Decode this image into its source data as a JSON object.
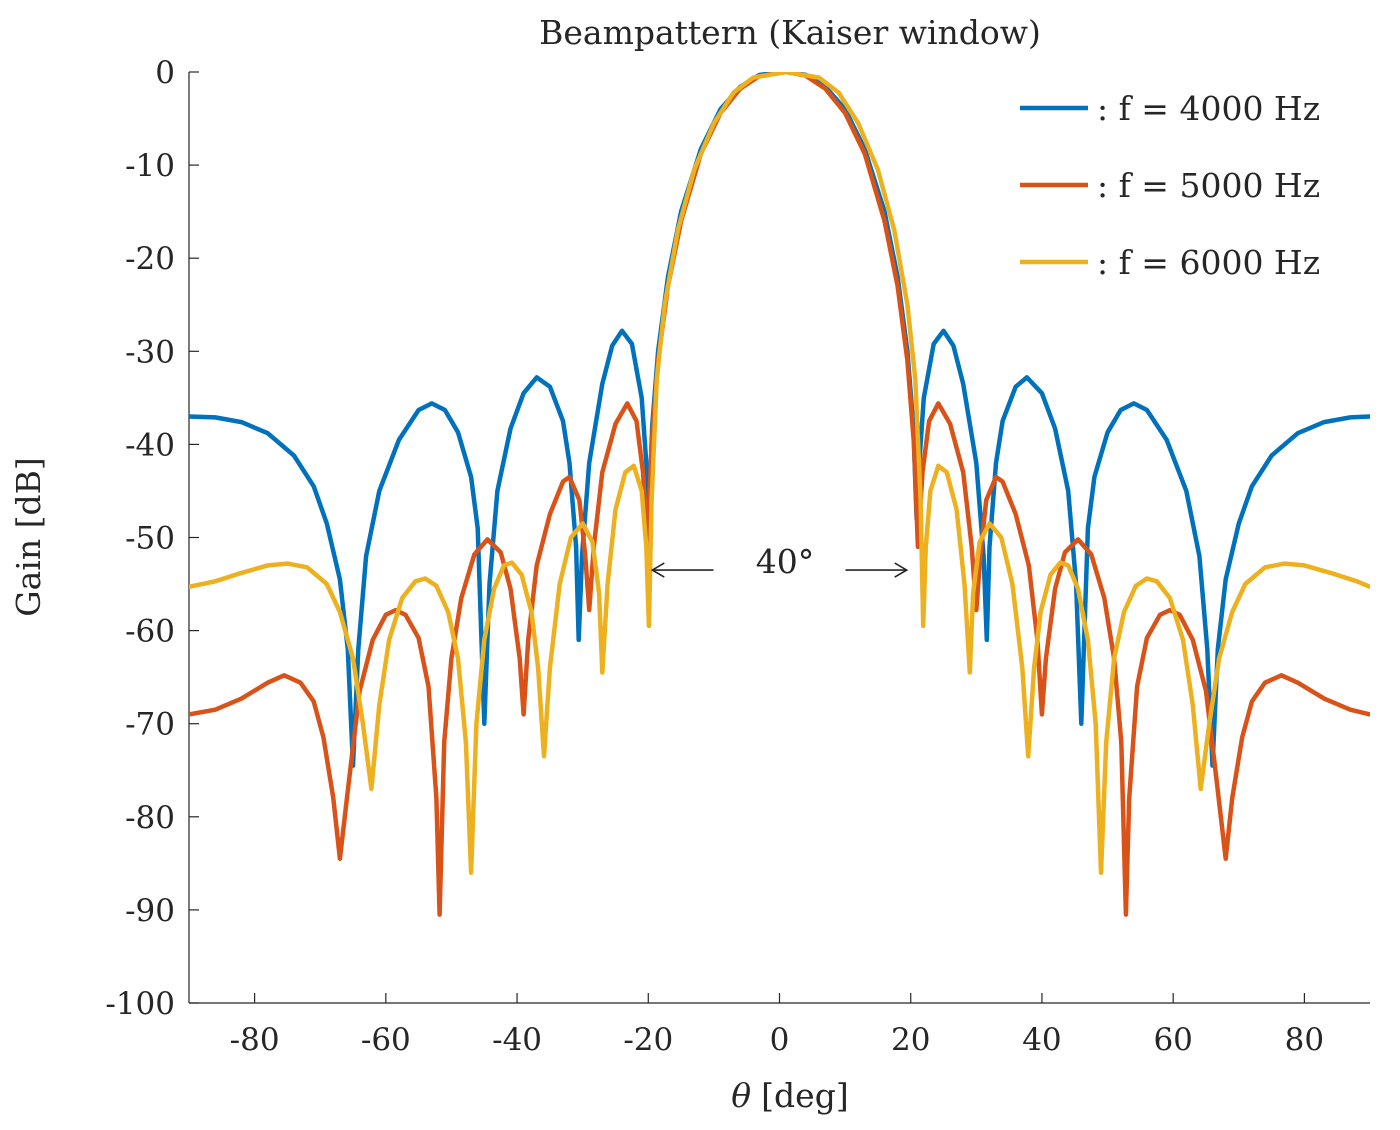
{
  "chart_data": {
    "type": "line",
    "title": "Beampattern (Kaiser window)",
    "xlabel_symbol": "θ",
    "xlabel": "[deg]",
    "ylabel": "Gain [dB]",
    "xlim": [
      -90,
      90
    ],
    "ylim": [
      -100,
      0
    ],
    "xticks": [
      -80,
      -60,
      -40,
      -20,
      0,
      20,
      40,
      60,
      80
    ],
    "xtick_labels": [
      "-80",
      "-60",
      "-40",
      "-20",
      "0",
      "20",
      "40",
      "60",
      "80"
    ],
    "yticks": [
      0,
      -10,
      -20,
      -30,
      -40,
      -50,
      -60,
      -70,
      -80,
      -90,
      -100
    ],
    "ytick_labels": [
      "0",
      "-10",
      "-20",
      "-30",
      "-40",
      "-50",
      "-60",
      "-70",
      "-80",
      "-90",
      "-100"
    ],
    "grid": false,
    "legend_position": "top-right",
    "annotation": {
      "text": "40°",
      "arrow_from": -20,
      "arrow_to": 20,
      "y": -53.5
    },
    "series": [
      {
        "name": ": f = 4000 Hz",
        "color": "#0072BD",
        "points": [
          [
            -90,
            -37
          ],
          [
            -86,
            -37.1
          ],
          [
            -82,
            -37.6
          ],
          [
            -78,
            -38.8
          ],
          [
            -74,
            -41.2
          ],
          [
            -71,
            -44.5
          ],
          [
            -69,
            -48.5
          ],
          [
            -67,
            -54.5
          ],
          [
            -65.8,
            -62
          ],
          [
            -65,
            -74.5
          ],
          [
            -64.2,
            -62
          ],
          [
            -63,
            -52
          ],
          [
            -61,
            -45
          ],
          [
            -58,
            -39.5
          ],
          [
            -55,
            -36.3
          ],
          [
            -53,
            -35.6
          ],
          [
            -51,
            -36.3
          ],
          [
            -49,
            -38.7
          ],
          [
            -47,
            -43.5
          ],
          [
            -46,
            -49
          ],
          [
            -45,
            -70
          ],
          [
            -44.2,
            -55
          ],
          [
            -43,
            -45
          ],
          [
            -41,
            -38.3
          ],
          [
            -39,
            -34.5
          ],
          [
            -37,
            -32.8
          ],
          [
            -35,
            -33.8
          ],
          [
            -33,
            -37.5
          ],
          [
            -32,
            -42
          ],
          [
            -31,
            -51
          ],
          [
            -30.6,
            -61
          ],
          [
            -30.1,
            -52
          ],
          [
            -29,
            -42
          ],
          [
            -27,
            -33.5
          ],
          [
            -25.5,
            -29.4
          ],
          [
            -24,
            -27.8
          ],
          [
            -22.5,
            -29.2
          ],
          [
            -21,
            -35
          ],
          [
            -20.3,
            -42
          ],
          [
            -19.9,
            -48
          ],
          [
            -19.4,
            -38
          ],
          [
            -18.5,
            -30
          ],
          [
            -17,
            -22
          ],
          [
            -15,
            -15
          ],
          [
            -12,
            -8.3
          ],
          [
            -9,
            -4
          ],
          [
            -6,
            -1.6
          ],
          [
            -3,
            -0.3
          ],
          [
            1,
            0
          ],
          [
            4,
            -0.3
          ],
          [
            7,
            -1.6
          ],
          [
            10,
            -4
          ],
          [
            13,
            -8.3
          ],
          [
            16,
            -15
          ],
          [
            18,
            -22
          ],
          [
            19.5,
            -30
          ],
          [
            20.4,
            -38
          ],
          [
            20.9,
            -48
          ],
          [
            21.3,
            -42
          ],
          [
            22,
            -35
          ],
          [
            23.5,
            -29.2
          ],
          [
            25,
            -27.8
          ],
          [
            26.5,
            -29.4
          ],
          [
            28,
            -33.5
          ],
          [
            30,
            -42
          ],
          [
            31.1,
            -52
          ],
          [
            31.6,
            -61
          ],
          [
            32,
            -51
          ],
          [
            33,
            -42
          ],
          [
            34,
            -37.5
          ],
          [
            36,
            -33.8
          ],
          [
            37.7,
            -32.8
          ],
          [
            40,
            -34.5
          ],
          [
            42,
            -38.3
          ],
          [
            44,
            -45
          ],
          [
            45.2,
            -55
          ],
          [
            46,
            -70
          ],
          [
            47,
            -49
          ],
          [
            48,
            -43.5
          ],
          [
            50,
            -38.7
          ],
          [
            52,
            -36.3
          ],
          [
            54,
            -35.6
          ],
          [
            56,
            -36.3
          ],
          [
            59,
            -39.5
          ],
          [
            62,
            -45
          ],
          [
            64,
            -52
          ],
          [
            65.2,
            -62
          ],
          [
            66,
            -74.5
          ],
          [
            66.8,
            -62
          ],
          [
            68,
            -54.5
          ],
          [
            70,
            -48.5
          ],
          [
            72,
            -44.5
          ],
          [
            75,
            -41.2
          ],
          [
            79,
            -38.8
          ],
          [
            83,
            -37.6
          ],
          [
            87,
            -37.1
          ],
          [
            90,
            -37
          ]
        ]
      },
      {
        "name": ": f = 5000 Hz",
        "color": "#D95319",
        "points": [
          [
            -90,
            -69
          ],
          [
            -86,
            -68.5
          ],
          [
            -82,
            -67.3
          ],
          [
            -78,
            -65.6
          ],
          [
            -75.5,
            -64.8
          ],
          [
            -73,
            -65.6
          ],
          [
            -71,
            -67.6
          ],
          [
            -69.5,
            -71.5
          ],
          [
            -68,
            -78
          ],
          [
            -67,
            -84.5
          ],
          [
            -65.6,
            -76
          ],
          [
            -64,
            -66.5
          ],
          [
            -62,
            -61
          ],
          [
            -60,
            -58.3
          ],
          [
            -58.5,
            -57.8
          ],
          [
            -57,
            -58.3
          ],
          [
            -55,
            -60.8
          ],
          [
            -53.5,
            -66
          ],
          [
            -52.3,
            -78
          ],
          [
            -51.8,
            -90.5
          ],
          [
            -51.1,
            -72
          ],
          [
            -50,
            -63
          ],
          [
            -48.5,
            -56.5
          ],
          [
            -46.5,
            -51.8
          ],
          [
            -44.5,
            -50.2
          ],
          [
            -42.5,
            -51.6
          ],
          [
            -41,
            -55.5
          ],
          [
            -39.6,
            -63
          ],
          [
            -39,
            -69
          ],
          [
            -38.3,
            -61
          ],
          [
            -37,
            -53
          ],
          [
            -35,
            -47.5
          ],
          [
            -33,
            -44
          ],
          [
            -32,
            -43.5
          ],
          [
            -30.5,
            -46
          ],
          [
            -29.6,
            -52
          ],
          [
            -29,
            -57.8
          ],
          [
            -28.3,
            -51
          ],
          [
            -27,
            -43
          ],
          [
            -25,
            -37.8
          ],
          [
            -23.2,
            -35.6
          ],
          [
            -21.8,
            -37.5
          ],
          [
            -20.8,
            -43
          ],
          [
            -20.1,
            -51
          ],
          [
            -19.5,
            -40
          ],
          [
            -18.5,
            -31
          ],
          [
            -17,
            -23
          ],
          [
            -15,
            -16
          ],
          [
            -12,
            -8.8
          ],
          [
            -9,
            -4.4
          ],
          [
            -6,
            -1.8
          ],
          [
            -3,
            -0.4
          ],
          [
            1,
            0
          ],
          [
            4,
            -0.4
          ],
          [
            7,
            -1.8
          ],
          [
            10,
            -4.4
          ],
          [
            13,
            -8.8
          ],
          [
            16,
            -16
          ],
          [
            18,
            -23
          ],
          [
            19.5,
            -31
          ],
          [
            20.5,
            -40
          ],
          [
            21.1,
            -51
          ],
          [
            21.8,
            -43
          ],
          [
            22.8,
            -37.5
          ],
          [
            24.2,
            -35.6
          ],
          [
            26,
            -37.8
          ],
          [
            28,
            -43
          ],
          [
            29.3,
            -51
          ],
          [
            30,
            -57.8
          ],
          [
            30.6,
            -52
          ],
          [
            31.5,
            -46
          ],
          [
            33,
            -43.5
          ],
          [
            34,
            -44
          ],
          [
            36,
            -47.5
          ],
          [
            38,
            -53
          ],
          [
            39.3,
            -61
          ],
          [
            40,
            -69
          ],
          [
            40.6,
            -63
          ],
          [
            42,
            -55.5
          ],
          [
            43.5,
            -51.6
          ],
          [
            45.5,
            -50.2
          ],
          [
            47.5,
            -51.8
          ],
          [
            49.5,
            -56.5
          ],
          [
            51,
            -63
          ],
          [
            52.1,
            -72
          ],
          [
            52.8,
            -90.5
          ],
          [
            53.3,
            -78
          ],
          [
            54.5,
            -66
          ],
          [
            56,
            -60.8
          ],
          [
            58,
            -58.3
          ],
          [
            59.5,
            -57.8
          ],
          [
            61,
            -58.3
          ],
          [
            63,
            -61
          ],
          [
            65,
            -66.5
          ],
          [
            66.6,
            -76
          ],
          [
            68,
            -84.5
          ],
          [
            69,
            -78
          ],
          [
            70.5,
            -71.5
          ],
          [
            72,
            -67.6
          ],
          [
            74,
            -65.6
          ],
          [
            76.5,
            -64.8
          ],
          [
            79,
            -65.6
          ],
          [
            83,
            -67.3
          ],
          [
            87,
            -68.5
          ],
          [
            90,
            -69
          ]
        ]
      },
      {
        "name": ": f = 6000 Hz",
        "color": "#EDB120",
        "points": [
          [
            -90,
            -55.3
          ],
          [
            -86,
            -54.7
          ],
          [
            -82,
            -53.8
          ],
          [
            -78,
            -53
          ],
          [
            -75,
            -52.8
          ],
          [
            -72,
            -53.2
          ],
          [
            -69,
            -55
          ],
          [
            -67,
            -58
          ],
          [
            -65,
            -63
          ],
          [
            -63.5,
            -70
          ],
          [
            -62.2,
            -77
          ],
          [
            -61,
            -68
          ],
          [
            -59.5,
            -61
          ],
          [
            -57.5,
            -56.5
          ],
          [
            -55.5,
            -54.7
          ],
          [
            -54,
            -54.4
          ],
          [
            -52.3,
            -55.2
          ],
          [
            -50.5,
            -58
          ],
          [
            -49,
            -63
          ],
          [
            -47.8,
            -72
          ],
          [
            -47,
            -86
          ],
          [
            -46.2,
            -70
          ],
          [
            -45,
            -61
          ],
          [
            -43.5,
            -55.5
          ],
          [
            -42,
            -53
          ],
          [
            -40.8,
            -52.7
          ],
          [
            -39.3,
            -54
          ],
          [
            -37.8,
            -58
          ],
          [
            -36.8,
            -64
          ],
          [
            -35.9,
            -73.5
          ],
          [
            -35,
            -64
          ],
          [
            -33.5,
            -55
          ],
          [
            -31.8,
            -50
          ],
          [
            -30,
            -48.5
          ],
          [
            -28.5,
            -50.5
          ],
          [
            -27.5,
            -56
          ],
          [
            -27,
            -64.5
          ],
          [
            -26.2,
            -55
          ],
          [
            -25,
            -47
          ],
          [
            -23.5,
            -43
          ],
          [
            -22.2,
            -42.3
          ],
          [
            -21,
            -45
          ],
          [
            -20.3,
            -51
          ],
          [
            -19.9,
            -59.5
          ],
          [
            -19.5,
            -46
          ],
          [
            -18.7,
            -33
          ],
          [
            -17.5,
            -25
          ],
          [
            -15.5,
            -17
          ],
          [
            -13,
            -10.5
          ],
          [
            -10,
            -5.5
          ],
          [
            -7,
            -2.2
          ],
          [
            -4,
            -0.6
          ],
          [
            1,
            0
          ],
          [
            6,
            -0.6
          ],
          [
            9,
            -2.2
          ],
          [
            12,
            -5.5
          ],
          [
            15,
            -10.5
          ],
          [
            17.5,
            -17
          ],
          [
            19.5,
            -25
          ],
          [
            20.7,
            -33
          ],
          [
            21.5,
            -46
          ],
          [
            21.9,
            -59.5
          ],
          [
            22.3,
            -51
          ],
          [
            23,
            -45
          ],
          [
            24.2,
            -42.3
          ],
          [
            25.5,
            -43
          ],
          [
            27,
            -47
          ],
          [
            28.2,
            -55
          ],
          [
            29,
            -64.5
          ],
          [
            29.5,
            -56
          ],
          [
            30.5,
            -50.5
          ],
          [
            32,
            -48.5
          ],
          [
            33.8,
            -50
          ],
          [
            35.5,
            -55
          ],
          [
            37,
            -64
          ],
          [
            37.9,
            -73.5
          ],
          [
            38.8,
            -64
          ],
          [
            39.8,
            -58
          ],
          [
            41.3,
            -54
          ],
          [
            42.8,
            -52.7
          ],
          [
            44,
            -53
          ],
          [
            45.5,
            -55.5
          ],
          [
            47,
            -61
          ],
          [
            48.2,
            -70
          ],
          [
            49,
            -86
          ],
          [
            49.8,
            -72
          ],
          [
            51,
            -63
          ],
          [
            52.5,
            -58
          ],
          [
            54.3,
            -55.2
          ],
          [
            56,
            -54.4
          ],
          [
            57.5,
            -54.7
          ],
          [
            59.5,
            -56.5
          ],
          [
            61.5,
            -61
          ],
          [
            63,
            -68
          ],
          [
            64.2,
            -77
          ],
          [
            65.5,
            -70
          ],
          [
            67,
            -63
          ],
          [
            69,
            -58
          ],
          [
            71,
            -55
          ],
          [
            74,
            -53.2
          ],
          [
            77,
            -52.8
          ],
          [
            80,
            -53
          ],
          [
            84,
            -53.8
          ],
          [
            88,
            -54.7
          ],
          [
            90,
            -55.3
          ]
        ]
      }
    ]
  }
}
